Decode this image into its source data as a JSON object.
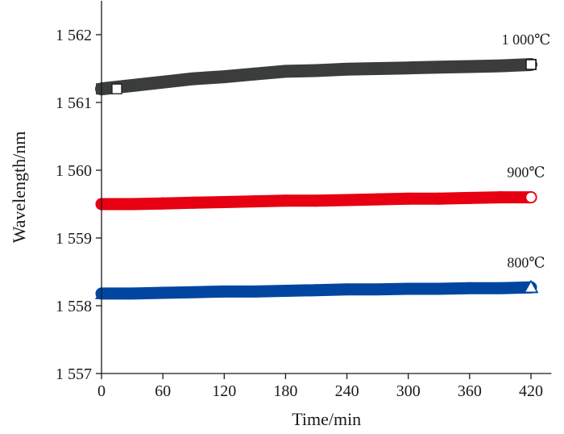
{
  "chart_data": {
    "type": "scatter",
    "xlabel": "Time/min",
    "ylabel": "Wavelength/nm",
    "xlim": [
      0,
      440
    ],
    "ylim": [
      1557,
      1562.5
    ],
    "x_ticks": [
      0,
      60,
      120,
      180,
      240,
      300,
      360,
      420
    ],
    "x_tick_labels": [
      "0",
      "60",
      "120",
      "180",
      "240",
      "300",
      "360",
      "420"
    ],
    "y_ticks": [
      1557,
      1558,
      1559,
      1560,
      1561,
      1562
    ],
    "y_tick_labels": [
      "1 557",
      "1 558",
      "1 559",
      "1 560",
      "1 561",
      "1 562"
    ],
    "grid": false,
    "legend": "none",
    "series": [
      {
        "name": "1 000℃",
        "marker": "square",
        "color": "#3a3d3b",
        "x": [
          0,
          30,
          60,
          90,
          120,
          150,
          180,
          210,
          240,
          270,
          300,
          330,
          360,
          390,
          420
        ],
        "y": [
          1561.2,
          1561.25,
          1561.3,
          1561.35,
          1561.38,
          1561.42,
          1561.46,
          1561.47,
          1561.49,
          1561.5,
          1561.51,
          1561.52,
          1561.53,
          1561.54,
          1561.56
        ]
      },
      {
        "name": "900℃",
        "marker": "circle",
        "color": "#e60012",
        "x": [
          0,
          30,
          60,
          90,
          120,
          150,
          180,
          210,
          240,
          270,
          300,
          330,
          360,
          390,
          420
        ],
        "y": [
          1559.5,
          1559.5,
          1559.51,
          1559.52,
          1559.53,
          1559.54,
          1559.55,
          1559.55,
          1559.56,
          1559.57,
          1559.58,
          1559.58,
          1559.59,
          1559.6,
          1559.6
        ]
      },
      {
        "name": "800℃",
        "marker": "triangle",
        "color": "#0046a0",
        "x": [
          0,
          30,
          60,
          90,
          120,
          150,
          180,
          210,
          240,
          270,
          300,
          330,
          360,
          390,
          420
        ],
        "y": [
          1558.18,
          1558.18,
          1558.19,
          1558.2,
          1558.21,
          1558.21,
          1558.22,
          1558.23,
          1558.24,
          1558.24,
          1558.25,
          1558.25,
          1558.26,
          1558.26,
          1558.27
        ]
      }
    ]
  }
}
